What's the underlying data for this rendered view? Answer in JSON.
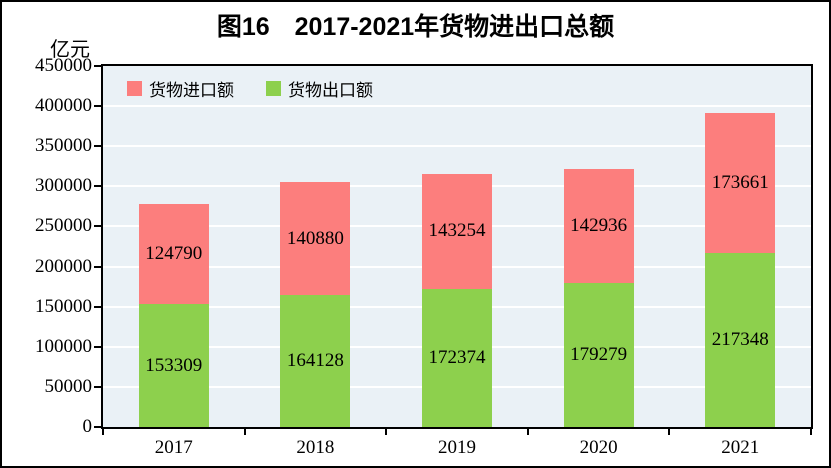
{
  "title": "图16　2017-2021年货物进出口总额",
  "unit_label": "亿元",
  "colors": {
    "import_bar": "#fc7e7d",
    "export_bar": "#8dd04d",
    "plot_bg": "#eaf1f6",
    "grid": "#ffffff",
    "frame": "#000000",
    "text": "#000000"
  },
  "legend": {
    "items": [
      {
        "label": "货物进口额",
        "color": "#fc7e7d"
      },
      {
        "label": "货物出口额",
        "color": "#8dd04d"
      }
    ]
  },
  "chart_data": {
    "type": "bar",
    "stacked": true,
    "title": "图16　2017-2021年货物进出口总额",
    "ylabel": "亿元",
    "xlabel": "",
    "categories": [
      "2017",
      "2018",
      "2019",
      "2020",
      "2021"
    ],
    "series": [
      {
        "name": "货物出口额",
        "color": "#8dd04d",
        "values": [
          153309,
          164128,
          172374,
          179279,
          217348
        ]
      },
      {
        "name": "货物进口额",
        "color": "#fc7e7d",
        "values": [
          124790,
          140880,
          143254,
          142936,
          173661
        ]
      }
    ],
    "totals": [
      278099,
      305008,
      315628,
      322215,
      391009
    ],
    "ylim": [
      0,
      450000
    ],
    "yticks": [
      0,
      50000,
      100000,
      150000,
      200000,
      250000,
      300000,
      350000,
      400000,
      450000
    ],
    "grid": true,
    "grid_color": "#ffffff",
    "plot_background": "#eaf1f6",
    "legend_position": "top-left-inside",
    "value_labels": "inside-center"
  }
}
